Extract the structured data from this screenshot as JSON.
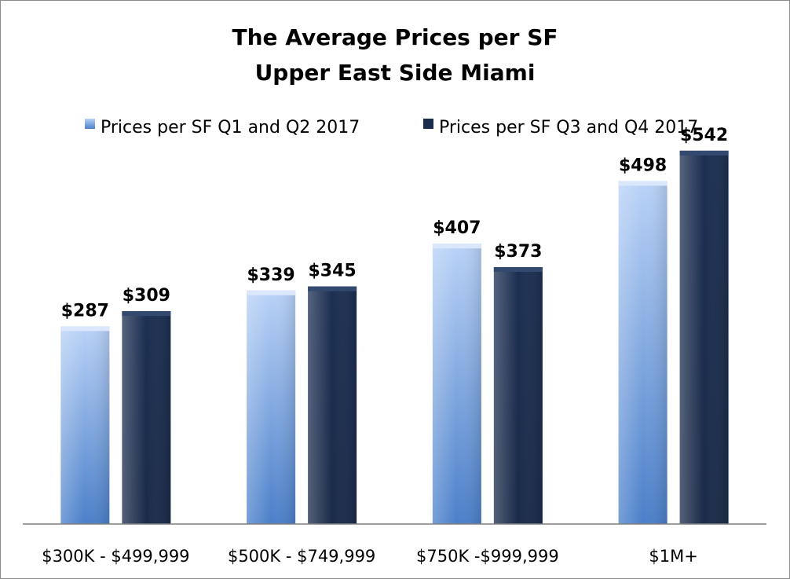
{
  "chart_data": {
    "type": "bar",
    "title": "The Average Prices per SF",
    "subtitle": "Upper East Side Miami",
    "categories": [
      "$300K - $499,999",
      "$500K - $749,999",
      "$750K -$999,999",
      "$1M+"
    ],
    "series": [
      {
        "name": "Prices per SF Q1 and Q2 2017",
        "values": [
          287,
          339,
          407,
          498
        ],
        "labels": [
          "$287",
          "$339",
          "$407",
          "$498"
        ],
        "color": "#8fb4ea"
      },
      {
        "name": "Prices per SF Q3 and Q4 2017",
        "values": [
          309,
          345,
          373,
          542
        ],
        "labels": [
          "$309",
          "$345",
          "$373",
          "$542"
        ],
        "color": "#1b2d4f"
      }
    ],
    "ylim": [
      0,
      600
    ],
    "grid": false,
    "legend_position": "top",
    "xlabel": "",
    "ylabel": ""
  }
}
